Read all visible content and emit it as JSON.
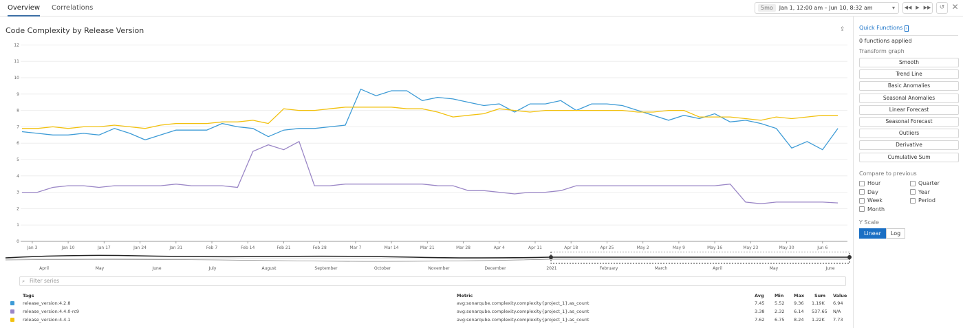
{
  "tabs": [
    {
      "label": "Overview",
      "active": true
    },
    {
      "label": "Correlations",
      "active": false
    }
  ],
  "timeframe": {
    "badge": "5mo",
    "range": "Jan 1, 12:00 am – Jun 10, 8:32 am"
  },
  "graph": {
    "title": "Code Complexity by Release Version"
  },
  "sidebar": {
    "quick_functions": "Quick Functions",
    "applied": "0 functions applied",
    "transform_label": "Transform graph",
    "transforms": [
      "Smooth",
      "Trend Line",
      "Basic Anomalies",
      "Seasonal Anomalies",
      "Linear Forecast",
      "Seasonal Forecast",
      "Outliers",
      "Derivative",
      "Cumulative Sum"
    ],
    "compare_label": "Compare to previous",
    "compare": [
      "Hour",
      "Quarter",
      "Day",
      "Year",
      "Week",
      "Period",
      "Month"
    ],
    "yscale_label": "Y Scale",
    "yscale": [
      "Linear",
      "Log"
    ],
    "yscale_selected": "Linear"
  },
  "navigator": {
    "labels": [
      "April",
      "May",
      "June",
      "July",
      "August",
      "September",
      "October",
      "November",
      "December",
      "2021",
      "February",
      "March",
      "April",
      "May",
      "June"
    ]
  },
  "filter_placeholder": "Filter series",
  "legend": {
    "headers": {
      "tags": "Tags",
      "metric": "Metric",
      "avg": "Avg",
      "min": "Min",
      "max": "Max",
      "sum": "Sum",
      "value": "Value"
    },
    "rows": [
      {
        "tag": "release_version:4.2.8",
        "metric": "avg:sonarqube.complexity.complexity{project_1}.as_count",
        "avg": "7.45",
        "min": "5.52",
        "max": "9.36",
        "sum": "1.19K",
        "value": "6.94",
        "color": "#3d9bd6"
      },
      {
        "tag": "release_version:4.4.0-rc9",
        "metric": "avg:sonarqube.complexity.complexity{project_1}.as_count",
        "avg": "3.38",
        "min": "2.32",
        "max": "6.14",
        "sum": "537.65",
        "value": "N/A",
        "color": "#9a86c6"
      },
      {
        "tag": "release_version:4.4.1",
        "metric": "avg:sonarqube.complexity.complexity{project_1}.as_count",
        "avg": "7.62",
        "min": "6.75",
        "max": "8.24",
        "sum": "1.22K",
        "value": "7.73",
        "color": "#f2c10f"
      }
    ]
  },
  "chart_data": {
    "type": "line",
    "ylim": [
      0,
      12
    ],
    "yticks": [
      "0",
      "1",
      "2",
      "3",
      "4",
      "5",
      "6",
      "7",
      "8",
      "9",
      "10",
      "11",
      "12"
    ],
    "xticks": [
      "Jan 3",
      "Jan 10",
      "Jan 17",
      "Jan 24",
      "Jan 31",
      "Feb 7",
      "Feb 14",
      "Feb 21",
      "Feb 28",
      "Mar 7",
      "Mar 14",
      "Mar 21",
      "Mar 28",
      "Apr 4",
      "Apr 11",
      "Apr 18",
      "Apr 25",
      "May 2",
      "May 9",
      "May 16",
      "May 23",
      "May 30",
      "Jun 6"
    ],
    "x_start": "Jan 1",
    "x_step_days": 3,
    "grid": true,
    "series": [
      {
        "name": "release_version:4.2.8",
        "color": "#3d9bd6",
        "values": [
          6.7,
          6.6,
          6.5,
          6.5,
          6.6,
          6.5,
          6.9,
          6.6,
          6.2,
          6.5,
          6.8,
          6.8,
          6.8,
          7.2,
          7.0,
          6.9,
          6.4,
          6.8,
          6.9,
          6.9,
          7.0,
          7.1,
          9.3,
          8.9,
          9.2,
          9.2,
          8.6,
          8.8,
          8.7,
          8.5,
          8.3,
          8.4,
          7.9,
          8.4,
          8.4,
          8.6,
          8.0,
          8.4,
          8.4,
          8.3,
          8.0,
          7.7,
          7.4,
          7.7,
          7.5,
          7.8,
          7.3,
          7.4,
          7.2,
          6.9,
          5.7,
          6.1,
          5.6,
          6.9
        ]
      },
      {
        "name": "release_version:4.4.0-rc9",
        "color": "#9a86c6",
        "values": [
          3.0,
          3.0,
          3.3,
          3.4,
          3.4,
          3.3,
          3.4,
          3.4,
          3.4,
          3.4,
          3.5,
          3.4,
          3.4,
          3.4,
          3.3,
          5.5,
          5.9,
          5.6,
          6.1,
          3.4,
          3.4,
          3.5,
          3.5,
          3.5,
          3.5,
          3.5,
          3.5,
          3.4,
          3.4,
          3.1,
          3.1,
          3.0,
          2.9,
          3.0,
          3.0,
          3.1,
          3.4,
          3.4,
          3.4,
          3.4,
          3.4,
          3.4,
          3.4,
          3.4,
          3.4,
          3.4,
          3.5,
          2.4,
          2.3,
          2.4,
          2.4,
          2.4,
          2.4,
          2.35
        ]
      },
      {
        "name": "release_version:4.4.1",
        "color": "#f2c10f",
        "values": [
          6.9,
          6.9,
          7.0,
          6.9,
          7.0,
          7.0,
          7.1,
          7.0,
          6.9,
          7.1,
          7.2,
          7.2,
          7.2,
          7.3,
          7.3,
          7.4,
          7.2,
          8.1,
          8.0,
          8.0,
          8.1,
          8.2,
          8.2,
          8.2,
          8.2,
          8.1,
          8.1,
          7.9,
          7.6,
          7.7,
          7.8,
          8.1,
          8.0,
          7.9,
          8.0,
          8.0,
          8.0,
          8.0,
          8.0,
          8.0,
          7.9,
          7.9,
          8.0,
          8.0,
          7.6,
          7.6,
          7.6,
          7.5,
          7.4,
          7.6,
          7.5,
          7.6,
          7.7,
          7.7
        ]
      }
    ]
  }
}
